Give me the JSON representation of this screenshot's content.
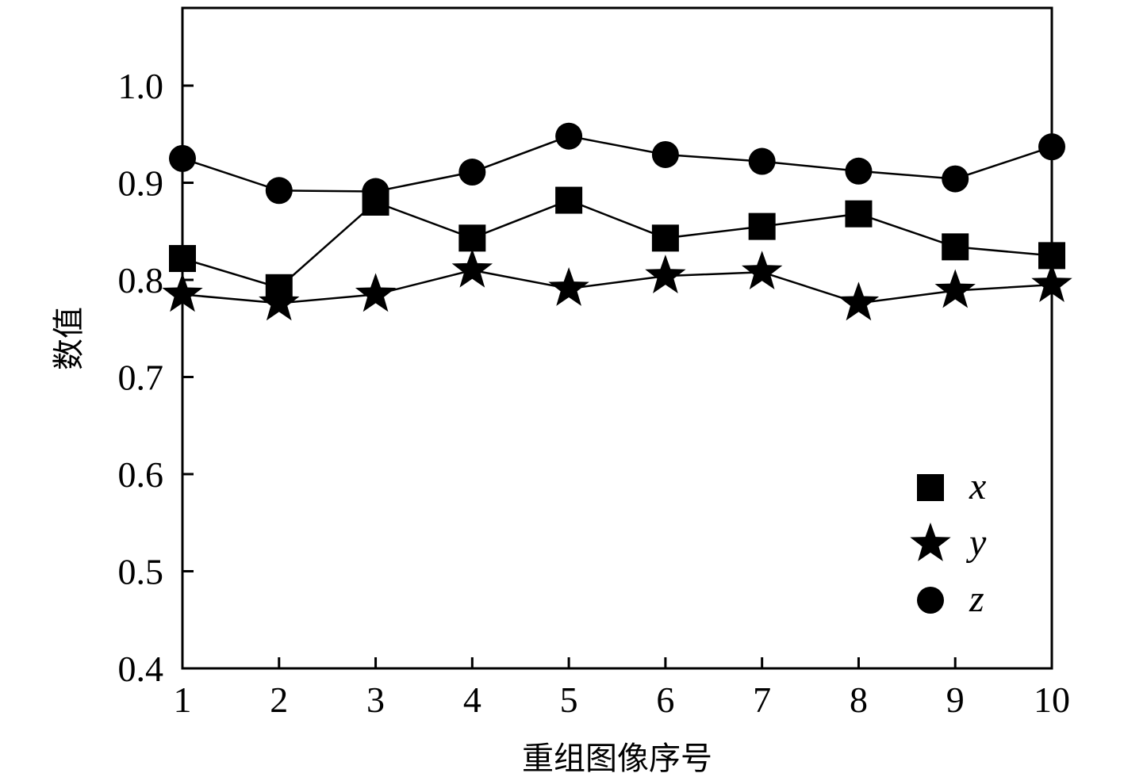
{
  "chart_data": {
    "type": "line",
    "xlabel": "重组图像序号",
    "ylabel": "数值",
    "x": [
      1,
      2,
      3,
      4,
      5,
      6,
      7,
      8,
      9,
      10
    ],
    "xlim": [
      1,
      10
    ],
    "ylim": [
      0.4,
      1.08
    ],
    "xticks": [
      "1",
      "2",
      "3",
      "4",
      "5",
      "6",
      "7",
      "8",
      "9",
      "10"
    ],
    "yticks": [
      "0.4",
      "0.5",
      "0.6",
      "0.7",
      "0.8",
      "0.9",
      "1.0"
    ],
    "grid": false,
    "legend_position": "bottom-right",
    "series": [
      {
        "name": "x",
        "marker": "square",
        "color": "#000000",
        "values": [
          0.822,
          0.792,
          0.88,
          0.843,
          0.882,
          0.843,
          0.855,
          0.868,
          0.834,
          0.825
        ]
      },
      {
        "name": "y",
        "marker": "star",
        "color": "#000000",
        "values": [
          0.785,
          0.776,
          0.785,
          0.81,
          0.791,
          0.804,
          0.808,
          0.776,
          0.789,
          0.795
        ]
      },
      {
        "name": "z",
        "marker": "circle",
        "color": "#000000",
        "values": [
          0.925,
          0.892,
          0.891,
          0.911,
          0.948,
          0.929,
          0.922,
          0.912,
          0.904,
          0.937
        ]
      }
    ]
  }
}
